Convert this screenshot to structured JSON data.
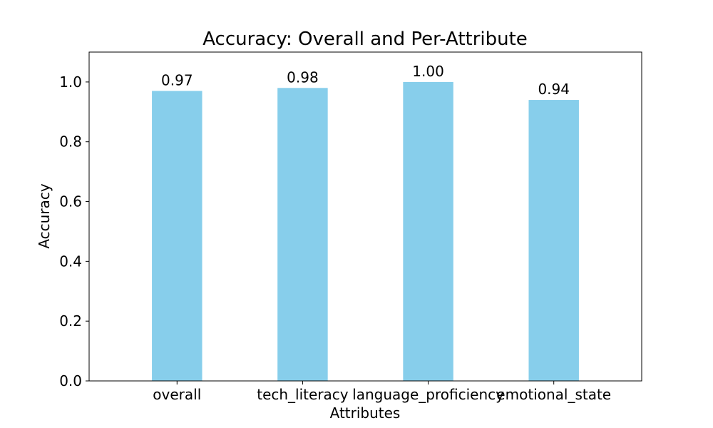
{
  "chart_data": {
    "type": "bar",
    "title": "Accuracy: Overall and Per-Attribute",
    "xlabel": "Attributes",
    "ylabel": "Accuracy",
    "categories": [
      "overall",
      "tech_literacy",
      "language_proficiency",
      "emotional_state"
    ],
    "values": [
      0.97,
      0.98,
      1.0,
      0.94
    ],
    "value_labels": [
      "0.97",
      "0.98",
      "1.00",
      "0.94"
    ],
    "ylim": [
      0,
      1.1
    ],
    "yticks": [
      0.0,
      0.2,
      0.4,
      0.6,
      0.8,
      1.0
    ],
    "ytick_labels": [
      "0.0",
      "0.2",
      "0.4",
      "0.6",
      "0.8",
      "1.0"
    ],
    "grid": false,
    "legend": "none",
    "bar_color": "#87ceeb"
  }
}
